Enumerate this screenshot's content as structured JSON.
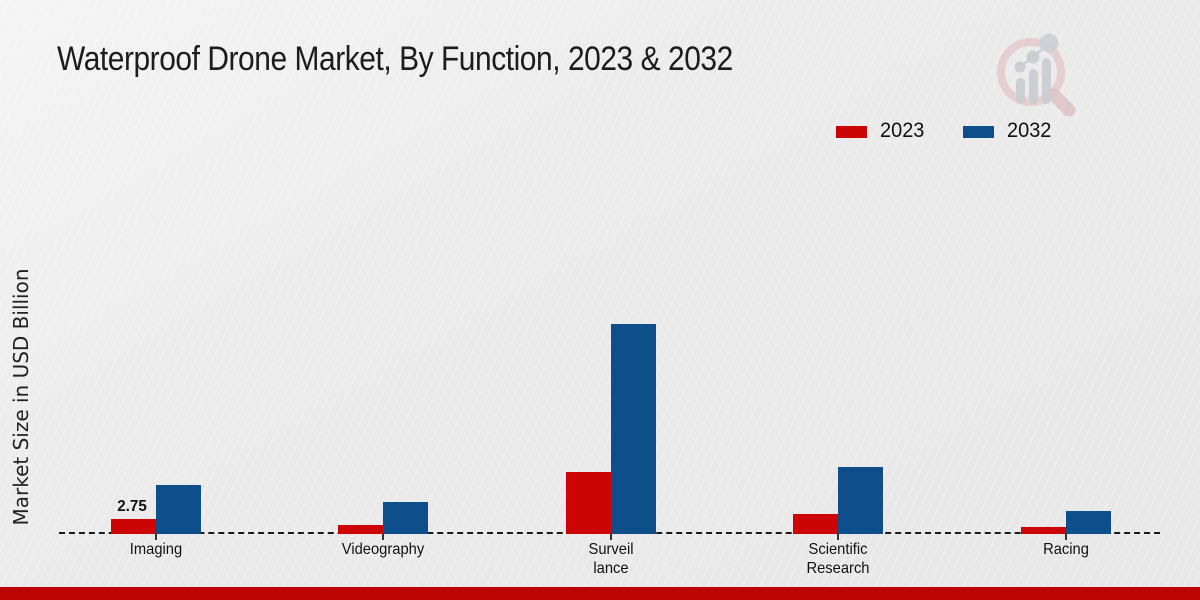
{
  "title": "Waterproof Drone Market, By Function, 2023 & 2032",
  "y_axis_label": "Market Size in USD Billion",
  "legend": {
    "items": [
      {
        "label": "2023",
        "color": "#cc0404"
      },
      {
        "label": "2032",
        "color": "#0d4e8b"
      }
    ]
  },
  "colors": {
    "series_2023": "#cc0404",
    "series_2032": "#0d4e8b",
    "baseline": "#1b1b1b",
    "bottom_strip": "#bd0404",
    "background": "#ebebeb",
    "watermark_pink": "#e2bfc1",
    "watermark_gray": "#c3c7cd"
  },
  "watermark": "magnifier-bar-chart-logo",
  "chart_data": {
    "type": "bar",
    "title": "Waterproof Drone Market, By Function, 2023 & 2032",
    "ylabel": "Market Size in USD Billion",
    "xlabel": "",
    "categories": [
      "Imaging",
      "Videography",
      "Surveillance",
      "Scientific Research",
      "Racing"
    ],
    "category_display_labels": [
      "Imaging",
      "Videography",
      "Surveil\nlance",
      "Scientific\nResearch",
      "Racing"
    ],
    "series": [
      {
        "name": "2023",
        "color": "#cc0404",
        "values": [
          2.75,
          1.6,
          11.4,
          3.7,
          1.3
        ]
      },
      {
        "name": "2032",
        "color": "#0d4e8b",
        "values": [
          9.0,
          5.9,
          38.5,
          12.3,
          4.2
        ]
      }
    ],
    "annotations": [
      {
        "series": "2023",
        "category": "Imaging",
        "text": "2.75"
      }
    ],
    "ylim": [
      0,
      40
    ],
    "grid": false,
    "legend_position": "top-right",
    "baseline_style": "dashed",
    "value_axis_ticks_visible": false
  }
}
